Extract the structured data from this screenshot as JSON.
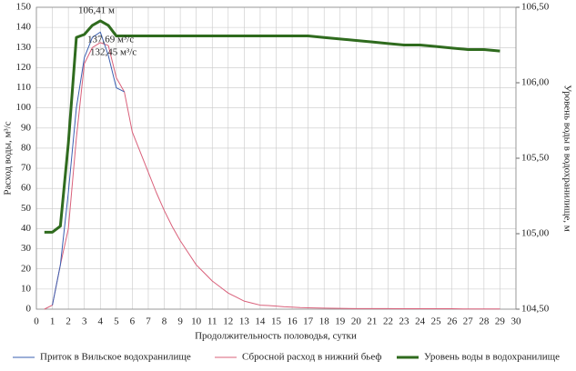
{
  "chart_data": {
    "type": "line",
    "y_label": "Расход воды, м³/с",
    "y2_label": "Уровень воды в водохранилище, м",
    "x_label": "Продолжительность половодья, сутки",
    "annotations": [
      "106,41 м",
      "137,69 м³/с",
      "132,45 м³/с"
    ],
    "grid": true,
    "legend": "bottom",
    "xlim": [
      0,
      30
    ],
    "xticks": [
      0,
      1,
      2,
      3,
      4,
      5,
      6,
      7,
      8,
      9,
      10,
      11,
      12,
      13,
      14,
      15,
      16,
      17,
      18,
      19,
      20,
      21,
      22,
      23,
      24,
      25,
      26,
      27,
      28,
      29,
      30
    ],
    "ylim": [
      0,
      150
    ],
    "yticks": [
      0,
      10,
      20,
      30,
      40,
      50,
      60,
      70,
      80,
      90,
      100,
      110,
      120,
      130,
      140,
      150
    ],
    "y2lim": [
      104.5,
      106.5
    ],
    "y2ticks": [
      {
        "value": 104.5,
        "label": "104,50"
      },
      {
        "value": 105,
        "label": "105,00"
      },
      {
        "value": 105.5,
        "label": "105,50"
      },
      {
        "value": 106,
        "label": "106,00"
      },
      {
        "value": 106.5,
        "label": "106,50"
      }
    ],
    "x": [
      0.5,
      1,
      1.5,
      2,
      2.5,
      3,
      3.5,
      4,
      4.5,
      5,
      5.5,
      6,
      6.5,
      7,
      7.5,
      8,
      8.5,
      9,
      9.5,
      10,
      10.5,
      11,
      11.5,
      12,
      12.5,
      13,
      13.5,
      14,
      14.5,
      15,
      15.5,
      16,
      16.5,
      17,
      18,
      19,
      20,
      21,
      22,
      23,
      24,
      25,
      26,
      27,
      28,
      29
    ],
    "series": [
      {
        "name": "Приток в Вильское водохранилище",
        "color": "#3a5fb0",
        "width": 1,
        "values": [
          null,
          2,
          22,
          58,
          100,
          125,
          135,
          137.69,
          126,
          110,
          108,
          null,
          null,
          null,
          null,
          null,
          null,
          null,
          null,
          null,
          null,
          null,
          null,
          null,
          null,
          null,
          null,
          null,
          null,
          null,
          null,
          null,
          null,
          null,
          null,
          null,
          null,
          null,
          null,
          null,
          null,
          null,
          null,
          null,
          null,
          null
        ]
      },
      {
        "name": "Сбросной расход в нижний бьеф",
        "color": "#d9607a",
        "width": 1,
        "values": [
          0,
          2,
          22,
          40,
          85,
          122,
          130,
          132.45,
          131,
          115,
          108,
          88,
          78,
          68,
          58,
          49,
          41,
          34,
          28,
          22,
          18,
          14,
          11,
          8,
          6,
          4,
          3,
          2,
          1.8,
          1.5,
          1.2,
          1,
          0.8,
          0.7,
          0.5,
          0.4,
          0.3,
          0.3,
          0.3,
          0.2,
          0.2,
          0.2,
          0.2,
          0.1,
          0.1,
          0.1
        ]
      },
      {
        "name": "Уровень воды в водохранилище",
        "color": "#2f6b1e",
        "width": 3,
        "axis": "y2",
        "values": [
          105.01,
          105.01,
          105.05,
          105.6,
          106.3,
          106.32,
          106.38,
          106.41,
          106.38,
          106.31,
          106.31,
          106.31,
          106.31,
          106.31,
          106.31,
          106.31,
          106.31,
          106.31,
          106.31,
          106.31,
          106.31,
          106.31,
          106.31,
          106.31,
          106.31,
          106.31,
          106.31,
          106.31,
          106.31,
          106.31,
          106.31,
          106.31,
          106.31,
          106.31,
          106.3,
          106.29,
          106.28,
          106.27,
          106.26,
          106.25,
          106.25,
          106.24,
          106.23,
          106.22,
          106.22,
          106.21
        ]
      }
    ]
  }
}
